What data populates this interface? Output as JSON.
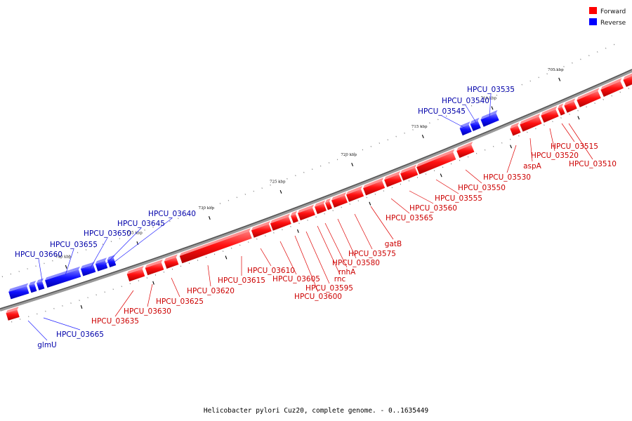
{
  "legend": {
    "forward": {
      "label": "Forward",
      "color": "#ff0000"
    },
    "reverse": {
      "label": "Reverse",
      "color": "#0000ff"
    }
  },
  "caption": "Helicobacter pylori Cuz20, complete genome. - 0..1635449",
  "ticks": [
    "705 kbp",
    "710 kbp",
    "715 kbp",
    "720 kbp",
    "725 kbp",
    "730 kbp",
    "735 kbp",
    "740 kbp"
  ],
  "genes": {
    "forward": [
      "HPCU_03510",
      "HPCU_03515",
      "HPCU_03520",
      "aspA",
      "HPCU_03530",
      "HPCU_03550",
      "HPCU_03555",
      "HPCU_03560",
      "HPCU_03565",
      "gatB",
      "HPCU_03575",
      "HPCU_03580",
      "rnhA",
      "rnc",
      "HPCU_03595",
      "HPCU_03600",
      "HPCU_03605",
      "HPCU_03610",
      "HPCU_03615",
      "HPCU_03620",
      "HPCU_03625",
      "HPCU_03630",
      "HPCU_03635"
    ],
    "reverse": [
      "HPCU_03535",
      "HPCU_03540",
      "HPCU_03545",
      "HPCU_03640",
      "HPCU_03645",
      "HPCU_03650",
      "HPCU_03655",
      "HPCU_03660",
      "HPCU_03665",
      "glmU"
    ]
  },
  "colors": {
    "label_forward": "#cc0000",
    "label_reverse": "#0000aa",
    "leader_forward": "#e00000",
    "leader_reverse": "#2222ff"
  }
}
